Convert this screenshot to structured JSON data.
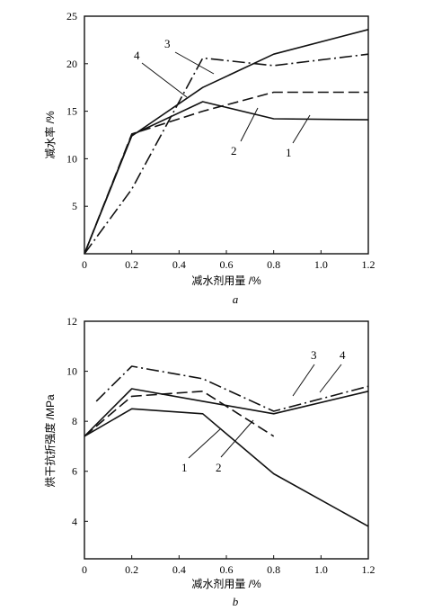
{
  "chart_data": [
    {
      "type": "line",
      "panel_label": "a",
      "xlabel": "减水剂用量 /%",
      "ylabel": "减水率 /%",
      "xlim": [
        0,
        1.2
      ],
      "ylim": [
        0,
        25
      ],
      "xticks": [
        "0",
        "0.2",
        "0.4",
        "0.6",
        "0.8",
        "1.0",
        "1.2"
      ],
      "yticks": [
        "5",
        "10",
        "15",
        "20",
        "25"
      ],
      "grid": false,
      "series": [
        {
          "name": "1",
          "style": "solid",
          "x": [
            0,
            0.2,
            0.5,
            0.8,
            1.2
          ],
          "y": [
            0,
            12.5,
            16.0,
            14.2,
            14.1
          ]
        },
        {
          "name": "2",
          "style": "dashed",
          "x": [
            0,
            0.2,
            0.5,
            0.8,
            1.2
          ],
          "y": [
            0,
            12.6,
            15.0,
            17.0,
            17.0
          ]
        },
        {
          "name": "3",
          "style": "solid",
          "x": [
            0,
            0.2,
            0.5,
            0.8,
            1.2
          ],
          "y": [
            0,
            12.4,
            17.5,
            21.0,
            23.6
          ]
        },
        {
          "name": "4",
          "style": "dashdot",
          "x": [
            0,
            0.2,
            0.5,
            0.8,
            1.2
          ],
          "y": [
            0,
            6.8,
            20.6,
            19.8,
            21.0
          ]
        }
      ],
      "annotations": [
        "1",
        "2",
        "3",
        "4"
      ]
    },
    {
      "type": "line",
      "panel_label": "b",
      "xlabel": "减水剂用量 /%",
      "ylabel": "烘干抗折强度 /MPa",
      "xlim": [
        0,
        1.2
      ],
      "ylim": [
        2.5,
        12
      ],
      "xticks": [
        "0",
        "0.2",
        "0.4",
        "0.6",
        "0.8",
        "1.0",
        "1.2"
      ],
      "yticks": [
        "4",
        "6",
        "8",
        "10",
        "12"
      ],
      "grid": false,
      "series": [
        {
          "name": "1",
          "style": "solid",
          "x": [
            0,
            0.2,
            0.5,
            0.8,
            1.2
          ],
          "y": [
            7.4,
            8.5,
            8.3,
            5.9,
            3.8
          ]
        },
        {
          "name": "2",
          "style": "dashed",
          "x": [
            0,
            0.2,
            0.5,
            0.8
          ],
          "y": [
            7.4,
            9.0,
            9.2,
            7.4
          ]
        },
        {
          "name": "3",
          "style": "solid",
          "x": [
            0,
            0.2,
            0.5,
            0.8,
            1.2
          ],
          "y": [
            7.4,
            9.3,
            8.8,
            8.3,
            9.2
          ]
        },
        {
          "name": "4",
          "style": "dashdot",
          "x": [
            0.05,
            0.2,
            0.5,
            0.8,
            1.2
          ],
          "y": [
            8.8,
            10.2,
            9.7,
            8.4,
            9.4
          ]
        }
      ],
      "annotations": [
        "1",
        "2",
        "3",
        "4"
      ]
    }
  ]
}
